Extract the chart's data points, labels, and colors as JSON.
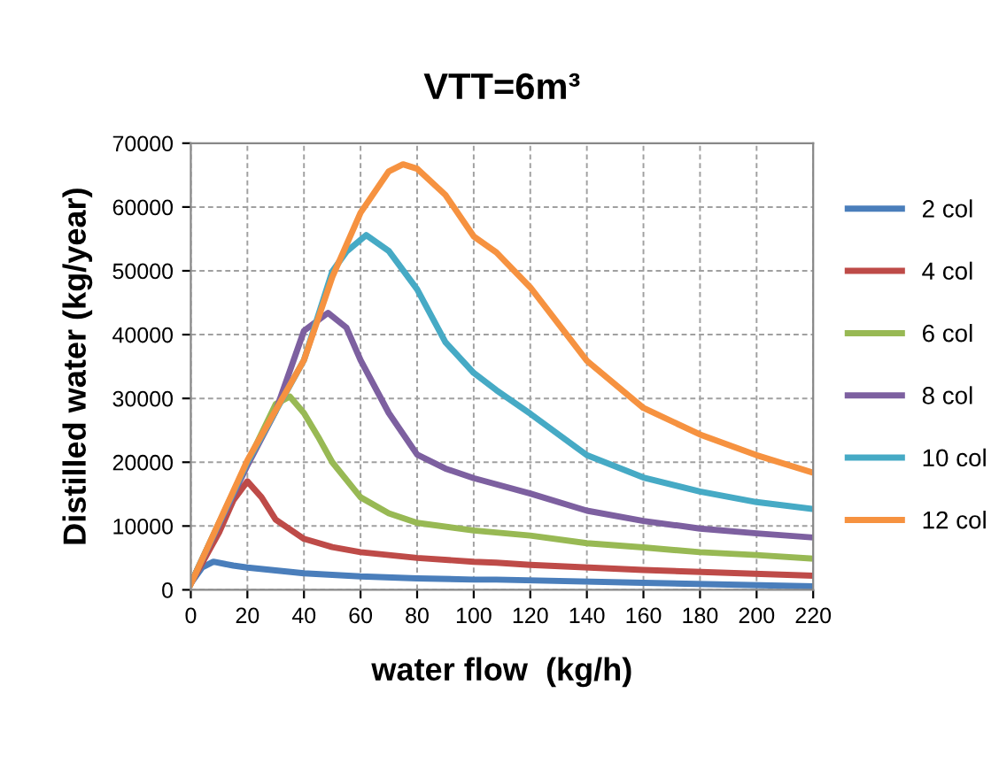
{
  "chart_data": {
    "type": "line",
    "title": "VTT=6m³",
    "xlabel": "water flow  (kg/h)",
    "ylabel": "Distilled water (kg/year)",
    "xlim": [
      0,
      220
    ],
    "xticks": [
      0,
      20,
      40,
      60,
      80,
      100,
      120,
      140,
      160,
      180,
      200,
      220
    ],
    "ylim": [
      0,
      70000
    ],
    "yticks": [
      0,
      10000,
      20000,
      30000,
      40000,
      50000,
      60000,
      70000
    ],
    "grid": true,
    "legend": "right",
    "marker": "none",
    "line_style": "solid",
    "series": [
      {
        "name": "2 col",
        "color": "#4a7ebb",
        "x": [
          0,
          4,
          8,
          15,
          20,
          40,
          60,
          80,
          100,
          108,
          160,
          220
        ],
        "values": [
          1000,
          3500,
          4400,
          3800,
          3500,
          2600,
          2100,
          1800,
          1600,
          1600,
          1100,
          550
        ]
      },
      {
        "name": "4 col",
        "color": "#be4b48",
        "x": [
          0,
          10,
          15,
          20,
          25,
          30,
          40,
          50,
          60,
          80,
          100,
          108,
          120,
          160,
          220
        ],
        "values": [
          1000,
          9000,
          14000,
          17000,
          14500,
          11000,
          8000,
          6700,
          5900,
          5000,
          4400,
          4250,
          3900,
          3100,
          2200
        ]
      },
      {
        "name": "6 col",
        "color": "#98b954",
        "x": [
          0,
          20,
          30,
          35,
          40,
          45,
          50,
          60,
          70,
          80,
          100,
          120,
          140,
          160,
          180,
          200,
          220
        ],
        "values": [
          1000,
          19900,
          29100,
          30300,
          27700,
          24000,
          20000,
          14500,
          12000,
          10500,
          9300,
          8500,
          7300,
          6650,
          5900,
          5450,
          4900
        ]
      },
      {
        "name": "8 col",
        "color": "#7d60a0",
        "x": [
          0,
          20,
          30,
          40,
          48.5,
          55,
          60,
          70,
          80,
          90,
          100,
          120,
          140,
          160,
          180,
          200,
          220
        ],
        "values": [
          1000,
          19500,
          28000,
          40600,
          43400,
          41100,
          36000,
          27700,
          21200,
          19000,
          17500,
          15100,
          12400,
          10800,
          9600,
          8850,
          8200
        ]
      },
      {
        "name": "10 col",
        "color": "#46aac5",
        "x": [
          0,
          20,
          40,
          50,
          55,
          62,
          70,
          80,
          90,
          100,
          108,
          120,
          140,
          160,
          180,
          200,
          220
        ],
        "values": [
          1000,
          20000,
          36000,
          49900,
          53000,
          55600,
          53100,
          47100,
          38800,
          34000,
          31300,
          27600,
          21100,
          17600,
          15400,
          13750,
          12650
        ]
      },
      {
        "name": "12 col",
        "color": "#f69240",
        "x": [
          0,
          20,
          40,
          50,
          60,
          70,
          75,
          80,
          90,
          100,
          108,
          120,
          140,
          160,
          180,
          200,
          220
        ],
        "values": [
          900,
          20300,
          36000,
          49000,
          59100,
          65600,
          66700,
          66000,
          61900,
          55400,
          52900,
          47400,
          35900,
          28500,
          24350,
          21100,
          18350
        ]
      }
    ]
  }
}
